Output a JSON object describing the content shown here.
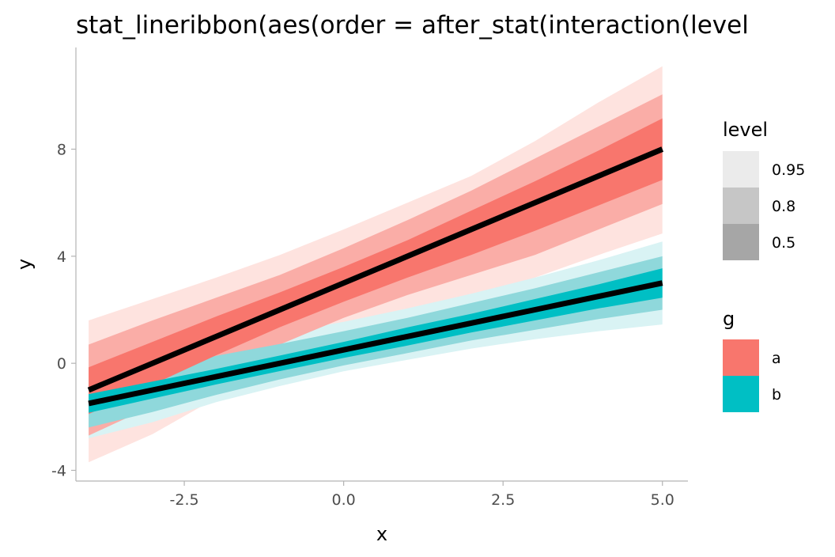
{
  "chart_data": {
    "type": "area",
    "title": "stat_lineribbon(aes(order = after_stat(interaction(level",
    "xlabel": "x",
    "ylabel": "y",
    "xlim": [
      -4.2,
      5.4
    ],
    "ylim": [
      -4.4,
      11.8
    ],
    "x_ticks": [
      -2.5,
      0.0,
      2.5,
      5.0
    ],
    "x_tick_labels": [
      "-2.5",
      "0.0",
      "2.5",
      "5.0"
    ],
    "y_ticks": [
      -4,
      0,
      4,
      8
    ],
    "y_tick_labels": [
      "-4",
      "0",
      "4",
      "8"
    ],
    "grid": false,
    "x": [
      -4,
      -3,
      -2,
      -1,
      0,
      1,
      2,
      3,
      4,
      5
    ],
    "series": [
      {
        "name": "a",
        "color": "#F8766D",
        "center": [
          -1.0,
          0.0,
          1.0,
          2.0,
          3.0,
          4.0,
          5.0,
          6.0,
          7.0,
          8.0
        ],
        "bands": {
          "0.5": {
            "lower": [
              -1.9,
              -0.8,
              0.3,
              1.35,
              2.3,
              3.2,
              4.05,
              4.95,
              5.9,
              6.85
            ],
            "upper": [
              -0.15,
              0.8,
              1.75,
              2.65,
              3.6,
              4.6,
              5.7,
              6.8,
              7.95,
              9.15
            ]
          },
          "0.8": {
            "lower": [
              -2.7,
              -1.6,
              -0.4,
              0.7,
              1.7,
              2.55,
              3.3,
              4.05,
              5.0,
              5.95
            ],
            "upper": [
              0.7,
              1.6,
              2.45,
              3.3,
              4.3,
              5.35,
              6.45,
              7.65,
              8.85,
              10.05
            ]
          },
          "0.95": {
            "lower": [
              -3.7,
              -2.65,
              -1.3,
              0.0,
              0.95,
              1.8,
              2.5,
              3.2,
              4.05,
              4.85
            ],
            "upper": [
              1.6,
              2.4,
              3.2,
              4.05,
              5.0,
              6.0,
              7.0,
              8.3,
              9.75,
              11.1
            ]
          }
        }
      },
      {
        "name": "b",
        "color": "#00BFC4",
        "center": [
          -1.5,
          -1.0,
          -0.5,
          0.0,
          0.5,
          1.0,
          1.5,
          2.0,
          2.5,
          3.0
        ],
        "bands": {
          "0.5": {
            "lower": [
              -1.85,
              -1.32,
              -0.79,
              -0.29,
              0.2,
              0.66,
              1.15,
              1.6,
              2.05,
              2.45
            ],
            "upper": [
              -1.15,
              -0.68,
              -0.21,
              0.29,
              0.8,
              1.34,
              1.85,
              2.4,
              2.95,
              3.55
            ]
          },
          "0.8": {
            "lower": [
              -2.4,
              -1.82,
              -1.18,
              -0.6,
              -0.08,
              0.38,
              0.85,
              1.25,
              1.65,
              2.0
            ],
            "upper": [
              -0.6,
              -0.18,
              0.28,
              0.72,
              1.2,
              1.7,
              2.25,
              2.8,
              3.4,
              4.0
            ]
          },
          "0.95": {
            "lower": [
              -2.8,
              -2.2,
              -1.45,
              -0.85,
              -0.3,
              0.13,
              0.55,
              0.9,
              1.2,
              1.45
            ],
            "upper": [
              -0.15,
              0.3,
              0.7,
              1.12,
              1.55,
              2.05,
              2.6,
              3.2,
              3.85,
              4.55
            ]
          }
        }
      }
    ],
    "legend": {
      "placement": "right",
      "level": {
        "title": "level",
        "entries": [
          {
            "label": "0.95",
            "color": "#EBEBEB"
          },
          {
            "label": "0.8",
            "color": "#C6C6C6"
          },
          {
            "label": "0.5",
            "color": "#A6A6A6"
          }
        ]
      },
      "g": {
        "title": "g",
        "entries": [
          {
            "label": "a",
            "color": "#F8766D"
          },
          {
            "label": "b",
            "color": "#00BFC4"
          }
        ]
      }
    },
    "band_colors": {
      "a": {
        "0.95": "#FEE3DF",
        "0.8": "#FAADA7",
        "0.5": "#F8766D"
      },
      "b": {
        "0.95": "#D9F3F4",
        "0.8": "#8FD8DB",
        "0.5": "#00BFC4"
      }
    },
    "line_color": "#000000"
  }
}
